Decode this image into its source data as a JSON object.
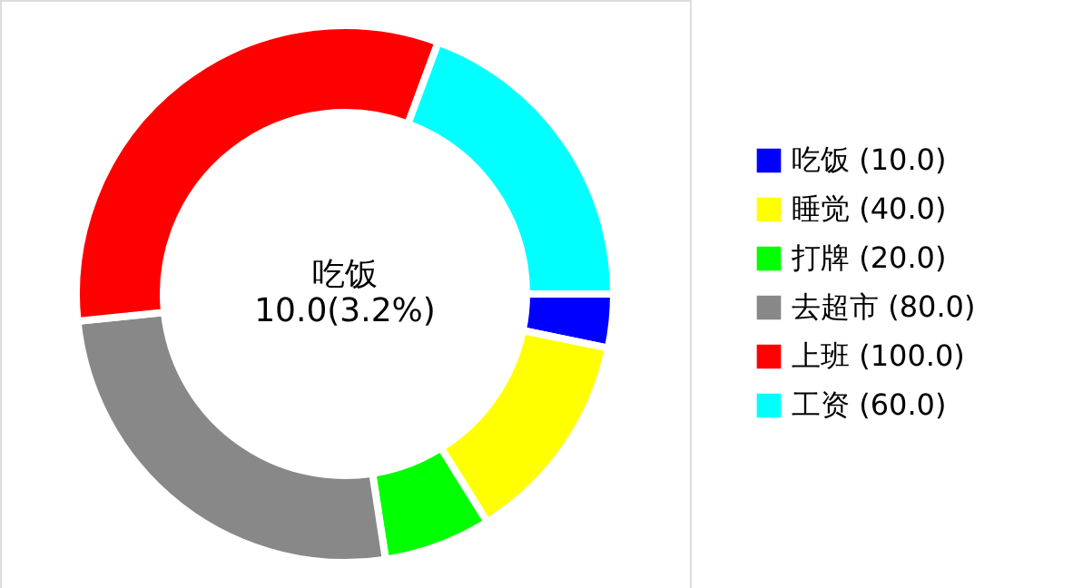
{
  "chart_data": {
    "type": "donut",
    "categories": [
      "吃饭 (10.0)",
      "睡觉 (40.0)",
      "打牌 (20.0)",
      "去超市 (80.0)",
      "上班 (100.0)",
      "工资 (60.0)"
    ],
    "values": [
      10,
      40,
      20,
      80,
      100,
      60
    ],
    "colors": [
      "#0000ff",
      "#ffff00",
      "#00ff00",
      "#888888",
      "#ff0000",
      "#00ffff"
    ],
    "annotations": [
      "吃饭",
      "10.0(3.2%)"
    ],
    "legend": "right"
  }
}
